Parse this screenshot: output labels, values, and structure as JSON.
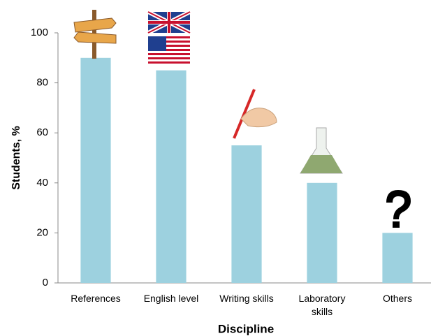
{
  "chart_data": {
    "type": "bar",
    "categories": [
      "References",
      "English level",
      "Writing skills",
      "Laboratory skills",
      "Others"
    ],
    "values": [
      90,
      85,
      55,
      40,
      20
    ],
    "color": "#9dd1df",
    "ylim": [
      0,
      100
    ],
    "yticks": [
      0,
      20,
      40,
      60,
      80,
      100
    ],
    "grid": false,
    "y_label": "Students, %",
    "x_label": "Discipline"
  }
}
